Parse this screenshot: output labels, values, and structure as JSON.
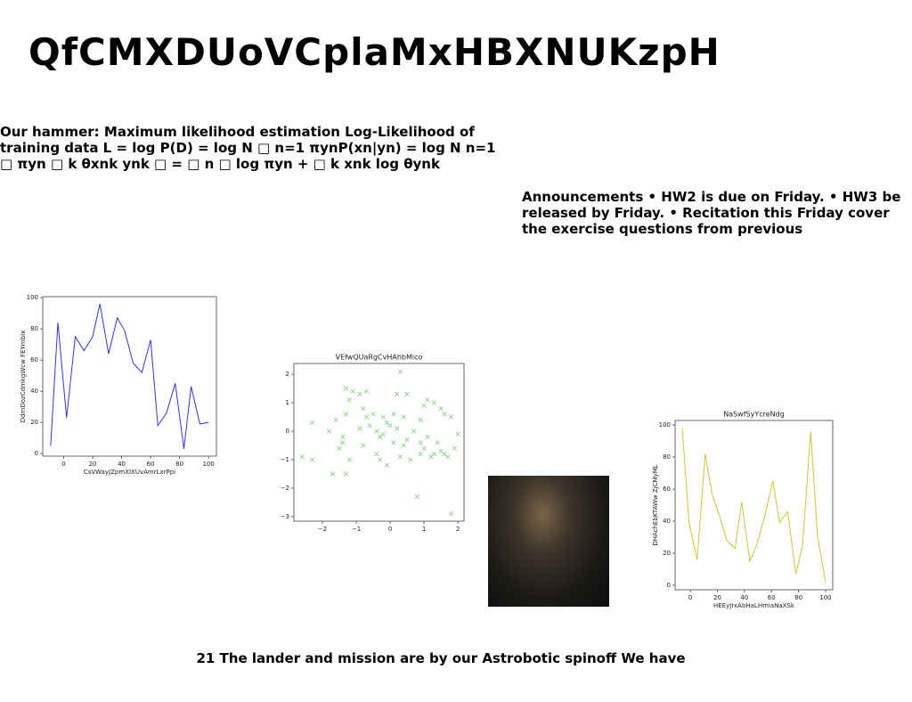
{
  "title": "QfCMXDUoVCplaMxHBXNUKzpH",
  "paragraphs": [
    "Our hammer: Maximum likelihood estimation Log-Likelihood of training data L = log P(D) = log N □ n=1 πynP(xn|yn) = log N n=1 □ πyn □ k θxnk ynk □ = □ n □ log πyn + □ k xnk log θynk",
    "Announcements • HW2 is due on Friday. • HW3 be released by Friday. • Recitation this Friday cover the exercise questions from previous"
  ],
  "caption": "21 The lander and mission are by our Astrobotic spinoff We have",
  "chart_data": [
    {
      "type": "line",
      "ylabel": "DdmDozCdmkgWcw FEYmbIx",
      "xlabel": "CsVWayJZpmXIXUvAmrLxrPpi",
      "color": "#3333dd",
      "x": [
        -9,
        -4,
        2,
        8,
        14,
        20,
        25,
        31,
        37,
        42,
        48,
        54,
        60,
        65,
        71,
        77,
        83,
        88,
        94,
        100
      ],
      "values": [
        5,
        84,
        23,
        75,
        66,
        75,
        96,
        64,
        87,
        79,
        58,
        52,
        73,
        18,
        26,
        45,
        3,
        43,
        19,
        20
      ],
      "xlim": [
        -14.45,
        105.45
      ],
      "ylim": [
        -1.65,
        100.65
      ],
      "xticks": [
        0,
        20,
        40,
        60,
        80,
        100
      ],
      "yticks": [
        0,
        20,
        40,
        60,
        80,
        100
      ]
    },
    {
      "type": "scatter",
      "title": "VEfwQUaRgCvHAhbMico",
      "color": "#86d286",
      "x": [
        -1.3,
        -1.1,
        -0.9,
        -1.2,
        -0.7,
        0.3,
        0.5,
        1.1,
        1.0,
        1.3,
        0.2,
        -0.8,
        -1.3,
        -1.6,
        -0.5,
        -0.7,
        -0.2,
        0.1,
        0.4,
        0.9,
        1.6,
        1.8,
        1.5,
        -2.3,
        -1.8,
        -1.4,
        -1.4,
        -1.2,
        -0.9,
        -0.6,
        -0.4,
        -0.2,
        0.0,
        0.2,
        0.5,
        0.7,
        0.9,
        1.1,
        1.4,
        1.6,
        1.9,
        2.0,
        -2.6,
        -2.3,
        -1.7,
        -1.3,
        -0.4,
        -0.3,
        -0.1,
        0.3,
        0.6,
        0.9,
        1.2,
        1.3,
        1.5,
        1.7,
        1.0,
        0.1,
        0.8,
        1.8,
        -0.3,
        -0.1,
        0.4,
        -0.8,
        -1.5
      ],
      "values": [
        1.5,
        1.4,
        1.3,
        1.1,
        1.4,
        2.1,
        1.3,
        1.1,
        0.9,
        1.0,
        1.3,
        0.8,
        0.6,
        0.4,
        0.6,
        0.5,
        0.5,
        0.6,
        0.5,
        0.4,
        0.6,
        0.5,
        0.8,
        0.3,
        0.0,
        -0.2,
        -0.4,
        -1.0,
        0.1,
        0.2,
        0.0,
        -0.1,
        0.2,
        0.1,
        -0.3,
        0.0,
        -0.4,
        -0.2,
        -0.4,
        -0.8,
        -0.6,
        -0.1,
        -0.9,
        -1.0,
        -1.5,
        -1.5,
        -0.8,
        -1.0,
        -1.2,
        -0.9,
        -1.0,
        -0.8,
        -0.9,
        -0.8,
        -0.7,
        -0.9,
        -0.6,
        -0.4,
        -2.3,
        -2.9,
        -0.2,
        0.3,
        -0.5,
        -0.5,
        -0.6
      ],
      "xlim": [
        -2.84,
        2.18
      ],
      "ylim": [
        -3.16,
        2.38
      ],
      "xticks": [
        {
          "value": -2,
          "label": "−2"
        },
        {
          "value": -1,
          "label": "−1"
        },
        0,
        1,
        2
      ],
      "yticks": [
        {
          "value": -3,
          "label": "−3"
        },
        {
          "value": -2,
          "label": "−2"
        },
        {
          "value": -1,
          "label": "−1"
        },
        0,
        1,
        2
      ]
    },
    {
      "type": "line",
      "title": "NaSwfSyYcreNdg",
      "ylabel": "DHAchEbKTAWw ZjCMyML",
      "xlabel": "HEEyJrxAbHaLHmiaNaXSk",
      "color": "#c8c83a",
      "x": [
        -6,
        -1,
        5,
        11,
        16,
        22,
        27,
        33,
        38,
        44,
        49,
        55,
        61,
        66,
        72,
        78,
        83,
        89,
        94,
        100
      ],
      "values": [
        98,
        39,
        16,
        82,
        57,
        42,
        28,
        23,
        52,
        15,
        25,
        43,
        65,
        39,
        46,
        7,
        25,
        96,
        31,
        2
      ],
      "xlim": [
        -11.3,
        105.3
      ],
      "ylim": [
        -2.8,
        102.8
      ],
      "xticks": [
        0,
        20,
        40,
        60,
        80,
        100
      ],
      "yticks": [
        0,
        20,
        40,
        60,
        80,
        100
      ]
    }
  ]
}
